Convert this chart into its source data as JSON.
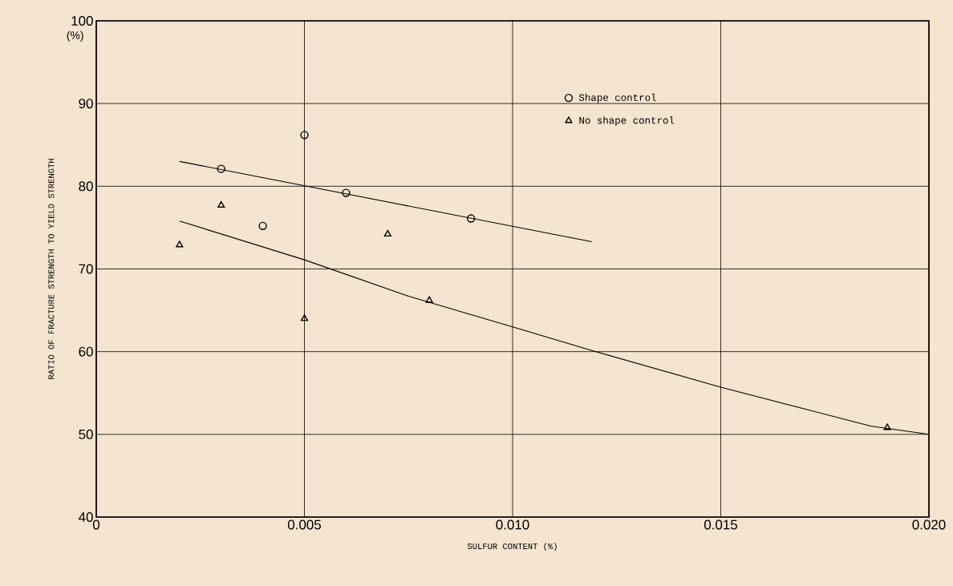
{
  "chart_data": {
    "type": "scatter",
    "xlabel": "SULFUR CONTENT (%)",
    "ylabel": "RATIO OF FRACTURE STRENGTH TO YIELD STRENGTH",
    "annotations": [
      "(%)"
    ],
    "xlim": [
      0,
      0.02
    ],
    "ylim": [
      40,
      100
    ],
    "xticks": [
      0,
      0.005,
      {
        "value": 0.01,
        "label": "0.010"
      },
      0.015,
      {
        "value": 0.02,
        "label": "0.020"
      }
    ],
    "yticks": [
      40,
      50,
      60,
      70,
      80,
      90,
      100
    ],
    "grid": true,
    "legend": "top right",
    "series": [
      {
        "name": "Shape control",
        "color": "#000000",
        "marker": "circle",
        "x": [
          0.003,
          0.004,
          0.005,
          0.006,
          0.009
        ],
        "values": [
          82.1,
          75.2,
          86.2,
          79.2,
          76.1
        ]
      },
      {
        "name": "No shape control",
        "color": "#000000",
        "marker": "triangle",
        "x": [
          0.002,
          0.003,
          0.005,
          0.007,
          0.008,
          0.019
        ],
        "values": [
          72.9,
          77.7,
          64.0,
          74.2,
          66.2,
          50.8
        ]
      },
      {
        "type": "line",
        "color": "#000000",
        "x": [
          0.002,
          0.0119
        ],
        "values": [
          83.0,
          73.3
        ]
      },
      {
        "type": "line",
        "color": "#000000",
        "x": [
          0.002,
          0.005,
          0.0075,
          0.01,
          0.012,
          0.015,
          0.0186,
          0.02
        ],
        "values": [
          75.8,
          71.1,
          66.7,
          63.0,
          60.0,
          55.7,
          51.0,
          50.0
        ]
      }
    ]
  }
}
